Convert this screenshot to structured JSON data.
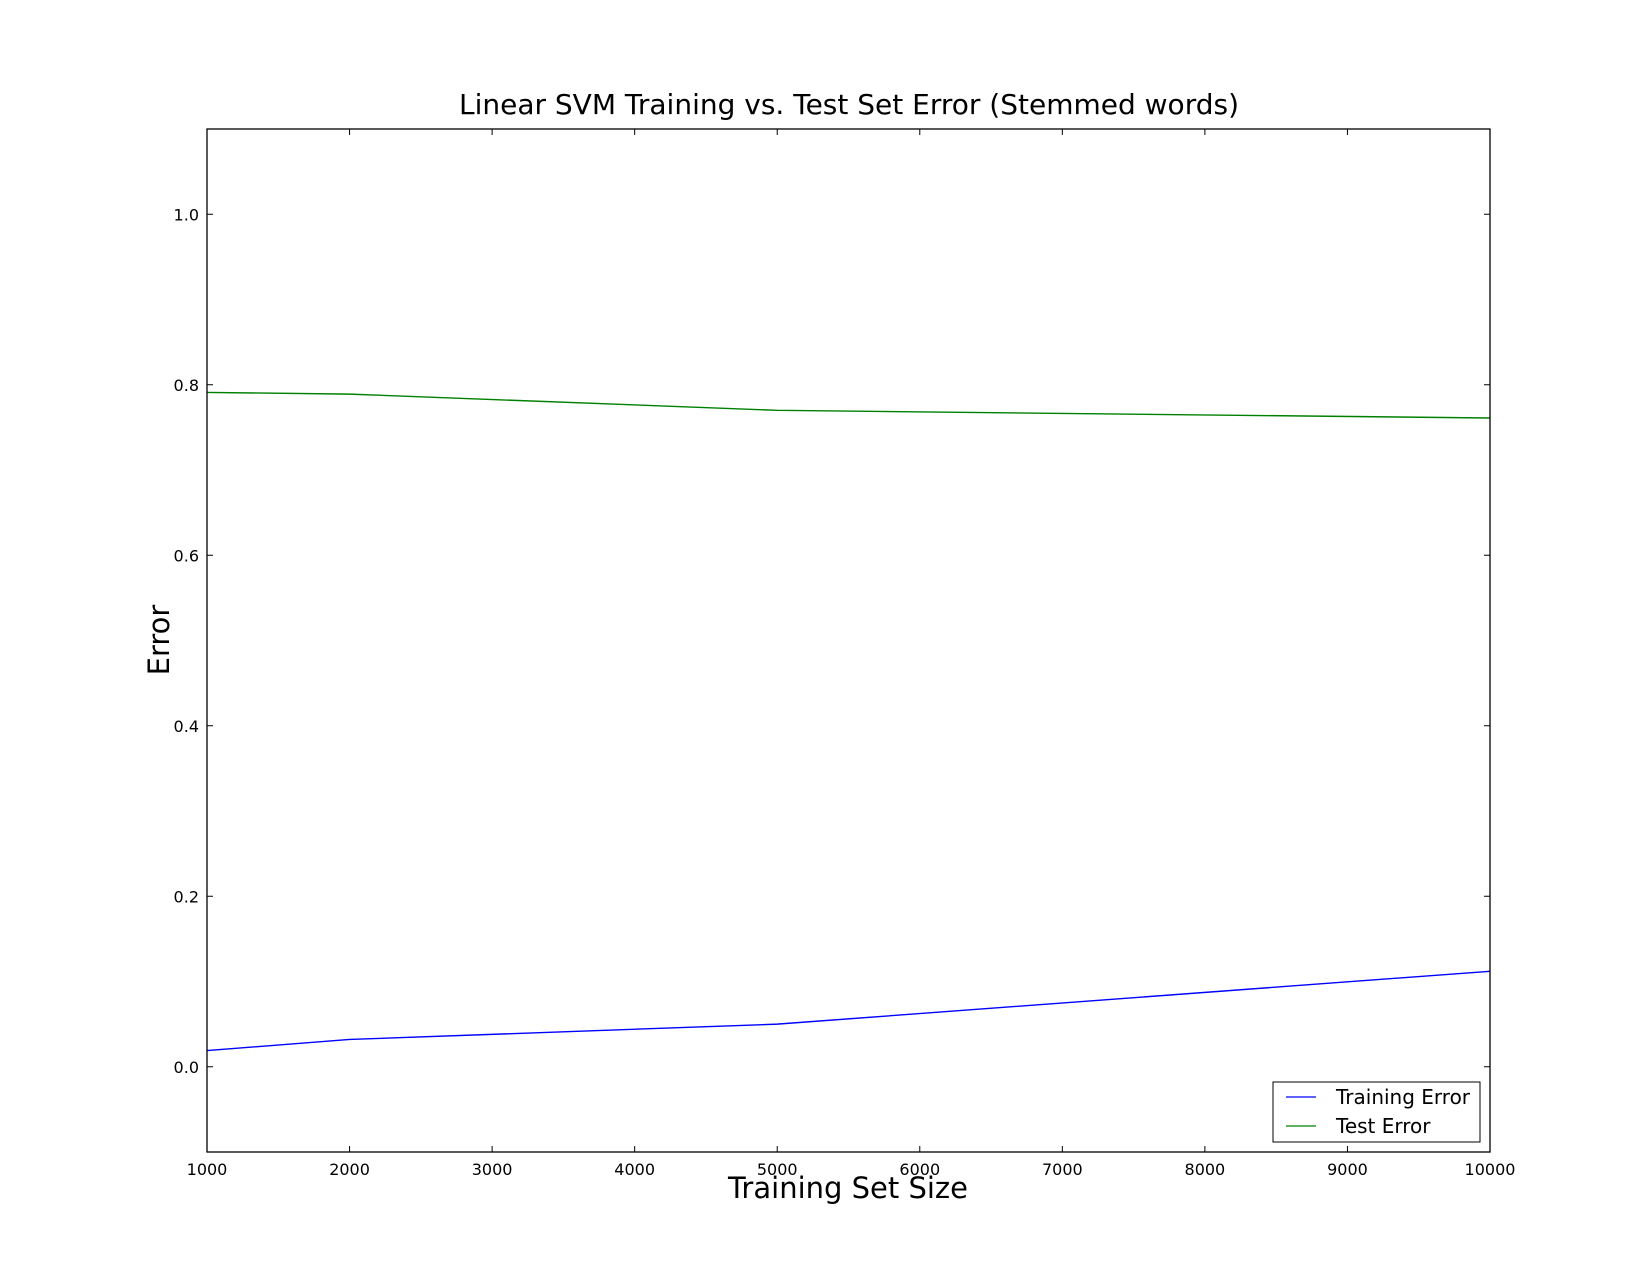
{
  "chart_data": {
    "type": "line",
    "title": "Linear SVM Training vs. Test Set Error (Stemmed words)",
    "xlabel": "Training Set Size",
    "ylabel": "Error",
    "xlim": [
      1000,
      10000
    ],
    "ylim": [
      -0.1,
      1.1
    ],
    "xticks": [
      1000,
      2000,
      3000,
      4000,
      5000,
      6000,
      7000,
      8000,
      9000,
      10000
    ],
    "yticks": [
      0.0,
      0.2,
      0.4,
      0.6,
      0.8,
      1.0
    ],
    "ytick_labels": [
      "0.0",
      "0.2",
      "0.4",
      "0.6",
      "0.8",
      "1.0"
    ],
    "grid": false,
    "legend_position": "bottom-right",
    "x": [
      1000,
      2000,
      5000,
      10000
    ],
    "series": [
      {
        "name": "Training Error",
        "color": "#0000ff",
        "values": [
          0.019,
          0.032,
          0.05,
          0.112
        ]
      },
      {
        "name": "Test Error",
        "color": "#008000",
        "values": [
          0.791,
          0.789,
          0.77,
          0.761
        ]
      }
    ]
  }
}
